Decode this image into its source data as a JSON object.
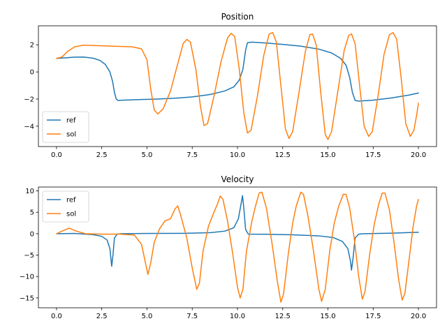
{
  "chart_data": [
    {
      "type": "line",
      "title": "Position",
      "xlabel": "",
      "ylabel": "",
      "xlim": [
        -1.0,
        21.0
      ],
      "ylim": [
        -5.5,
        3.4
      ],
      "xticks": [
        0.0,
        2.5,
        5.0,
        7.5,
        10.0,
        12.5,
        15.0,
        17.5,
        20.0
      ],
      "xtick_labels": [
        "0.0",
        "2.5",
        "5.0",
        "7.5",
        "10.0",
        "12.5",
        "15.0",
        "17.5",
        "20.0"
      ],
      "yticks": [
        -4,
        -2,
        0,
        2
      ],
      "ytick_labels": [
        "−4",
        "−2",
        "0",
        "2"
      ],
      "legend_position": "lower-left",
      "grid": false,
      "series": [
        {
          "name": "ref",
          "color": "#1f77b4",
          "points": [
            [
              0,
              1.0
            ],
            [
              0.5,
              1.04
            ],
            [
              1.0,
              1.09
            ],
            [
              1.5,
              1.1
            ],
            [
              2.0,
              1.02
            ],
            [
              2.4,
              0.85
            ],
            [
              2.7,
              0.55
            ],
            [
              2.95,
              0.0
            ],
            [
              3.1,
              -0.7
            ],
            [
              3.2,
              -1.5
            ],
            [
              3.3,
              -2.0
            ],
            [
              3.4,
              -2.1
            ],
            [
              3.7,
              -2.08
            ],
            [
              4.5,
              -2.04
            ],
            [
              5.5,
              -2.0
            ],
            [
              6.5,
              -1.94
            ],
            [
              7.5,
              -1.84
            ],
            [
              8.5,
              -1.66
            ],
            [
              9.3,
              -1.4
            ],
            [
              9.8,
              -1.1
            ],
            [
              10.1,
              -0.6
            ],
            [
              10.3,
              0.2
            ],
            [
              10.45,
              1.6
            ],
            [
              10.55,
              2.15
            ],
            [
              10.8,
              2.2
            ],
            [
              11.5,
              2.14
            ],
            [
              12.5,
              2.03
            ],
            [
              13.5,
              1.9
            ],
            [
              14.5,
              1.68
            ],
            [
              15.2,
              1.4
            ],
            [
              15.7,
              1.0
            ],
            [
              16.0,
              0.5
            ],
            [
              16.2,
              -0.4
            ],
            [
              16.35,
              -1.5
            ],
            [
              16.5,
              -2.1
            ],
            [
              16.7,
              -2.15
            ],
            [
              17.5,
              -2.08
            ],
            [
              18.5,
              -1.92
            ],
            [
              19.5,
              -1.7
            ],
            [
              20.0,
              -1.55
            ]
          ]
        },
        {
          "name": "sol",
          "color": "#ff7f0e",
          "points": [
            [
              0,
              1.0
            ],
            [
              0.3,
              1.1
            ],
            [
              0.6,
              1.5
            ],
            [
              1.0,
              1.85
            ],
            [
              1.5,
              1.97
            ],
            [
              2.5,
              1.93
            ],
            [
              3.5,
              1.88
            ],
            [
              4.2,
              1.85
            ],
            [
              4.7,
              1.7
            ],
            [
              5.0,
              0.9
            ],
            [
              5.2,
              -1.2
            ],
            [
              5.4,
              -2.8
            ],
            [
              5.6,
              -3.1
            ],
            [
              5.9,
              -2.7
            ],
            [
              6.3,
              -1.4
            ],
            [
              6.7,
              0.6
            ],
            [
              7.0,
              2.1
            ],
            [
              7.2,
              2.4
            ],
            [
              7.4,
              2.2
            ],
            [
              7.7,
              0.2
            ],
            [
              7.95,
              -2.5
            ],
            [
              8.15,
              -3.95
            ],
            [
              8.35,
              -3.8
            ],
            [
              8.7,
              -1.8
            ],
            [
              9.1,
              0.8
            ],
            [
              9.45,
              2.5
            ],
            [
              9.65,
              2.85
            ],
            [
              9.85,
              2.6
            ],
            [
              10.1,
              0.2
            ],
            [
              10.35,
              -3.0
            ],
            [
              10.55,
              -4.5
            ],
            [
              10.75,
              -4.3
            ],
            [
              11.1,
              -1.8
            ],
            [
              11.45,
              1.2
            ],
            [
              11.75,
              2.8
            ],
            [
              11.95,
              2.9
            ],
            [
              12.15,
              2.2
            ],
            [
              12.4,
              -1.0
            ],
            [
              12.65,
              -4.2
            ],
            [
              12.85,
              -4.9
            ],
            [
              13.05,
              -4.4
            ],
            [
              13.4,
              -1.5
            ],
            [
              13.75,
              1.5
            ],
            [
              14.0,
              2.75
            ],
            [
              14.15,
              2.8
            ],
            [
              14.35,
              2.0
            ],
            [
              14.6,
              -1.5
            ],
            [
              14.85,
              -4.6
            ],
            [
              15.0,
              -4.98
            ],
            [
              15.2,
              -4.4
            ],
            [
              15.55,
              -1.4
            ],
            [
              15.9,
              1.6
            ],
            [
              16.15,
              2.7
            ],
            [
              16.3,
              2.8
            ],
            [
              16.5,
              2.1
            ],
            [
              16.75,
              -1.0
            ],
            [
              17.0,
              -4.0
            ],
            [
              17.25,
              -4.75
            ],
            [
              17.45,
              -4.4
            ],
            [
              17.8,
              -1.5
            ],
            [
              18.1,
              1.3
            ],
            [
              18.4,
              2.75
            ],
            [
              18.6,
              2.9
            ],
            [
              18.8,
              2.4
            ],
            [
              19.05,
              -0.5
            ],
            [
              19.3,
              -3.8
            ],
            [
              19.55,
              -4.75
            ],
            [
              19.75,
              -4.3
            ],
            [
              19.9,
              -3.2
            ],
            [
              20.0,
              -2.3
            ]
          ]
        }
      ]
    },
    {
      "type": "line",
      "title": "Velocity",
      "xlabel": "",
      "ylabel": "",
      "xlim": [
        -1.0,
        21.0
      ],
      "ylim": [
        -17.3,
        10.9
      ],
      "xticks": [
        0.0,
        2.5,
        5.0,
        7.5,
        10.0,
        12.5,
        15.0,
        17.5,
        20.0
      ],
      "xtick_labels": [
        "0.0",
        "2.5",
        "5.0",
        "7.5",
        "10.0",
        "12.5",
        "15.0",
        "17.5",
        "20.0"
      ],
      "yticks": [
        -15,
        -10,
        -5,
        0,
        5,
        10
      ],
      "ytick_labels": [
        "−15",
        "−10",
        "−5",
        "0",
        "5",
        "10"
      ],
      "legend_position": "upper-left",
      "grid": false,
      "series": [
        {
          "name": "ref",
          "color": "#1f77b4",
          "points": [
            [
              0,
              0.0
            ],
            [
              1.0,
              0.05
            ],
            [
              2.0,
              -0.2
            ],
            [
              2.5,
              -0.6
            ],
            [
              2.8,
              -1.5
            ],
            [
              2.95,
              -3.5
            ],
            [
              3.05,
              -7.6
            ],
            [
              3.12,
              -5.0
            ],
            [
              3.2,
              -1.0
            ],
            [
              3.35,
              -0.1
            ],
            [
              3.6,
              0.0
            ],
            [
              5.0,
              0.05
            ],
            [
              7.0,
              0.08
            ],
            [
              8.5,
              0.25
            ],
            [
              9.3,
              0.6
            ],
            [
              9.8,
              1.4
            ],
            [
              10.05,
              3.5
            ],
            [
              10.2,
              7.0
            ],
            [
              10.28,
              8.9
            ],
            [
              10.35,
              6.0
            ],
            [
              10.45,
              1.0
            ],
            [
              10.6,
              -0.1
            ],
            [
              11.5,
              -0.12
            ],
            [
              13.0,
              -0.25
            ],
            [
              14.5,
              -0.5
            ],
            [
              15.3,
              -0.9
            ],
            [
              15.8,
              -1.8
            ],
            [
              16.1,
              -3.5
            ],
            [
              16.25,
              -6.5
            ],
            [
              16.3,
              -8.5
            ],
            [
              16.38,
              -6.0
            ],
            [
              16.5,
              -1.0
            ],
            [
              16.7,
              -0.1
            ],
            [
              17.0,
              0.0
            ],
            [
              18.5,
              0.12
            ],
            [
              20.0,
              0.35
            ]
          ]
        },
        {
          "name": "sol",
          "color": "#ff7f0e",
          "points": [
            [
              0,
              0.0
            ],
            [
              0.3,
              0.6
            ],
            [
              0.7,
              1.3
            ],
            [
              1.1,
              0.6
            ],
            [
              1.6,
              0.0
            ],
            [
              2.5,
              -0.1
            ],
            [
              3.5,
              -0.1
            ],
            [
              4.3,
              -0.3
            ],
            [
              4.7,
              -2.5
            ],
            [
              4.95,
              -7.5
            ],
            [
              5.05,
              -9.5
            ],
            [
              5.2,
              -7.0
            ],
            [
              5.4,
              -2.0
            ],
            [
              5.7,
              1.2
            ],
            [
              6.0,
              3.0
            ],
            [
              6.3,
              3.5
            ],
            [
              6.55,
              5.8
            ],
            [
              6.7,
              6.5
            ],
            [
              6.85,
              4.5
            ],
            [
              7.2,
              -1.0
            ],
            [
              7.5,
              -8.0
            ],
            [
              7.75,
              -13.0
            ],
            [
              7.9,
              -11.5
            ],
            [
              8.1,
              -4.0
            ],
            [
              8.4,
              1.8
            ],
            [
              8.7,
              5.0
            ],
            [
              8.9,
              7.0
            ],
            [
              9.05,
              8.8
            ],
            [
              9.2,
              8.0
            ],
            [
              9.45,
              3.0
            ],
            [
              9.75,
              -5.0
            ],
            [
              10.0,
              -12.5
            ],
            [
              10.15,
              -15.0
            ],
            [
              10.3,
              -13.0
            ],
            [
              10.5,
              -4.0
            ],
            [
              10.8,
              3.0
            ],
            [
              11.0,
              6.5
            ],
            [
              11.2,
              9.5
            ],
            [
              11.35,
              9.7
            ],
            [
              11.6,
              6.0
            ],
            [
              11.9,
              -2.0
            ],
            [
              12.2,
              -11.0
            ],
            [
              12.4,
              -16.0
            ],
            [
              12.55,
              -14.0
            ],
            [
              12.8,
              -5.0
            ],
            [
              13.05,
              2.5
            ],
            [
              13.25,
              6.5
            ],
            [
              13.5,
              9.7
            ],
            [
              13.65,
              9.2
            ],
            [
              13.9,
              4.0
            ],
            [
              14.2,
              -4.0
            ],
            [
              14.5,
              -13.0
            ],
            [
              14.65,
              -15.8
            ],
            [
              14.85,
              -13.0
            ],
            [
              15.1,
              -4.0
            ],
            [
              15.35,
              2.5
            ],
            [
              15.6,
              6.5
            ],
            [
              15.85,
              9.2
            ],
            [
              16.0,
              9.2
            ],
            [
              16.2,
              6.0
            ],
            [
              16.45,
              -1.0
            ],
            [
              16.7,
              -10.0
            ],
            [
              16.9,
              -15.3
            ],
            [
              17.05,
              -13.5
            ],
            [
              17.3,
              -5.0
            ],
            [
              17.55,
              2.0
            ],
            [
              17.8,
              6.8
            ],
            [
              18.0,
              9.5
            ],
            [
              18.15,
              9.5
            ],
            [
              18.4,
              5.5
            ],
            [
              18.65,
              -2.0
            ],
            [
              18.9,
              -10.5
            ],
            [
              19.1,
              -15.5
            ],
            [
              19.25,
              -14.0
            ],
            [
              19.5,
              -5.5
            ],
            [
              19.7,
              1.5
            ],
            [
              19.9,
              6.5
            ],
            [
              20.0,
              8.0
            ]
          ]
        }
      ]
    }
  ]
}
